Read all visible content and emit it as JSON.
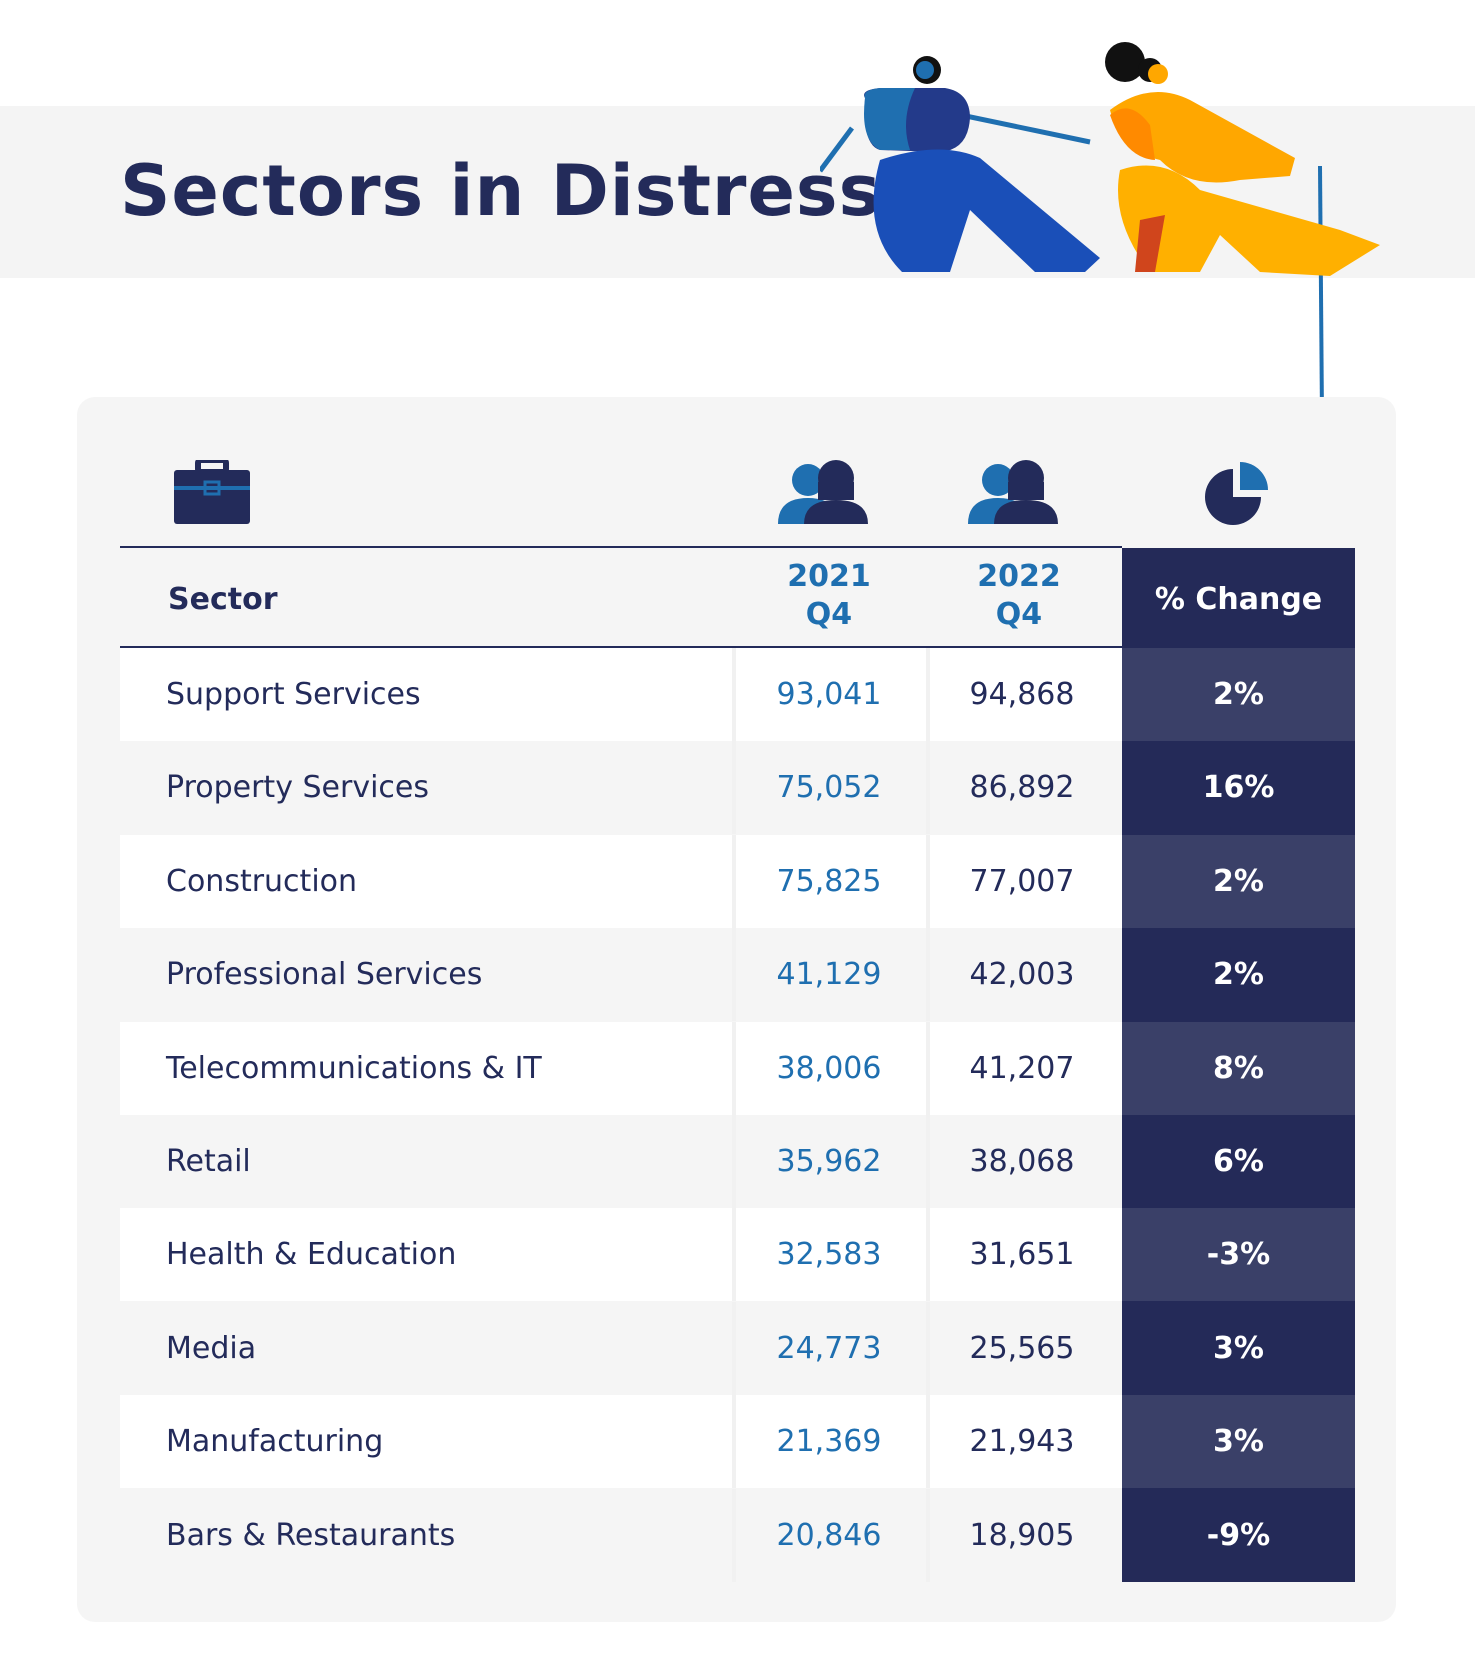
{
  "title": "Sectors in Distress",
  "icons": {
    "sector": "briefcase-icon",
    "year_2021": "people-icon",
    "year_2022": "people-icon",
    "change": "pie-chart-icon"
  },
  "colors": {
    "navy": "#232b5a",
    "blue": "#1f6fb0",
    "row_alt_dark": "#242a58",
    "row_alt_light": "#3a4068"
  },
  "table": {
    "headers": {
      "sector": "Sector",
      "y2021_line1": "2021",
      "y2021_line2": "Q4",
      "y2022_line1": "2022",
      "y2022_line2": "Q4",
      "change": "% Change"
    },
    "rows": [
      {
        "sector": "Support Services",
        "y2021": "93,041",
        "y2022": "94,868",
        "change": "2%"
      },
      {
        "sector": "Property Services",
        "y2021": "75,052",
        "y2022": "86,892",
        "change": "16%"
      },
      {
        "sector": "Construction",
        "y2021": "75,825",
        "y2022": "77,007",
        "change": "2%"
      },
      {
        "sector": "Professional Services",
        "y2021": "41,129",
        "y2022": "42,003",
        "change": "2%"
      },
      {
        "sector": "Telecommunications & IT",
        "y2021": "38,006",
        "y2022": "41,207",
        "change": "8%"
      },
      {
        "sector": "Retail",
        "y2021": "35,962",
        "y2022": "38,068",
        "change": "6%"
      },
      {
        "sector": "Health & Education",
        "y2021": "32,583",
        "y2022": "31,651",
        "change": "-3%"
      },
      {
        "sector": "Media",
        "y2021": "24,773",
        "y2022": "25,565",
        "change": "3%"
      },
      {
        "sector": "Manufacturing",
        "y2021": "21,369",
        "y2022": "21,943",
        "change": "3%"
      },
      {
        "sector": "Bars & Restaurants",
        "y2021": "20,846",
        "y2022": "18,905",
        "change": "-9%"
      }
    ]
  }
}
